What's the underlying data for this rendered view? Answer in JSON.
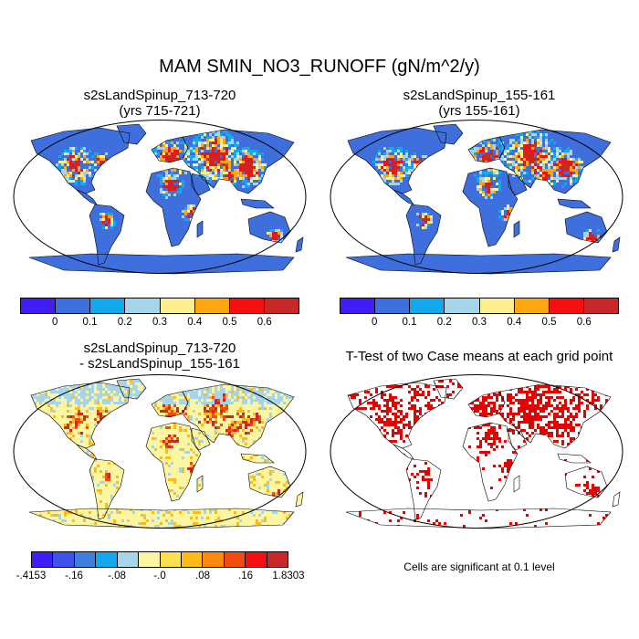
{
  "title": "MAM SMIN_NO3_RUNOFF (gN/m^2/y)",
  "panels": [
    {
      "id": "case1",
      "title_line1": "s2sLandSpinup_713-720",
      "title_line2": "(yrs 715-721)"
    },
    {
      "id": "case2",
      "title_line1": "s2sLandSpinup_155-161",
      "title_line2": "(yrs 155-161)"
    },
    {
      "id": "diff",
      "title_line1": "s2sLandSpinup_713-720",
      "title_line2": "- s2sLandSpinup_155-161"
    },
    {
      "id": "ttest",
      "title_line1": "T-Test of two Case means at each grid point"
    }
  ],
  "colorbar_abs": {
    "colors": [
      "#3f1ff5",
      "#3f6fdc",
      "#12a8ee",
      "#a6d4ea",
      "#fdf08c",
      "#fda513",
      "#f21010",
      "#c82828"
    ],
    "labels": [
      "0",
      "0.1",
      "0.2",
      "0.3",
      "0.4",
      "0.5",
      "0.6"
    ]
  },
  "colorbar_diff": {
    "colors": [
      "#3f1ff5",
      "#3f52ea",
      "#3f7fdc",
      "#12a8ee",
      "#a6d4ea",
      "#fdf6a0",
      "#fde050",
      "#fdbb1a",
      "#fd8a10",
      "#f24a10",
      "#f21010",
      "#c82828"
    ],
    "labels": [
      "-.4153",
      "-.16",
      "-.08",
      "-.0",
      ".08",
      ".16",
      "1.8303"
    ]
  },
  "footnote": "Cells are significant at 0.1 level"
}
